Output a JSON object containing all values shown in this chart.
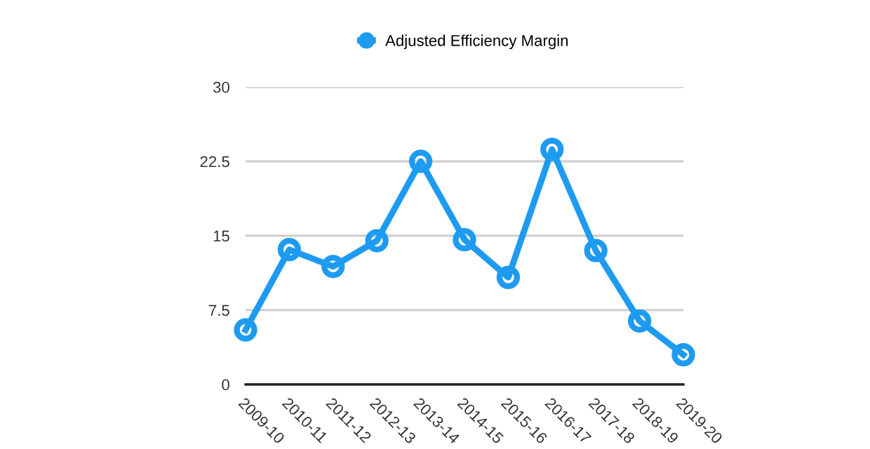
{
  "chart_data": {
    "type": "line",
    "categories": [
      "2009-10",
      "2010-11",
      "2011-12",
      "2012-13",
      "2013-14",
      "2014-15",
      "2015-16",
      "2016-17",
      "2017-18",
      "2018-19",
      "2019-20"
    ],
    "series": [
      {
        "name": "Adjusted Efficiency Margin",
        "color": "#1e9bf0",
        "values": [
          5.5,
          13.6,
          11.9,
          14.5,
          22.5,
          14.6,
          10.8,
          23.7,
          13.5,
          6.4,
          3.0
        ]
      }
    ],
    "ylim": [
      0,
      30
    ],
    "yticks": [
      0,
      7.5,
      15,
      22.5,
      30
    ],
    "grid": "y",
    "legend": "top",
    "marker": "circle",
    "line_style": "solid"
  }
}
